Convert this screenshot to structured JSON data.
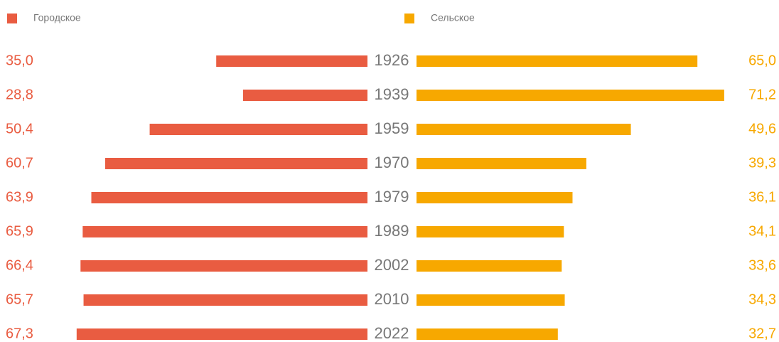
{
  "chart_data": {
    "type": "butterfly",
    "categories": [
      "1926",
      "1939",
      "1959",
      "1970",
      "1979",
      "1989",
      "2002",
      "2010",
      "2022"
    ],
    "series": [
      {
        "name": "Городское",
        "color": "#e95c41",
        "values": [
          35.0,
          28.8,
          50.4,
          60.7,
          63.9,
          65.9,
          66.4,
          65.7,
          67.3
        ],
        "value_labels": [
          "35,0",
          "28,8",
          "50,4",
          "60,7",
          "63,9",
          "65,9",
          "66,4",
          "65,7",
          "67,3"
        ]
      },
      {
        "name": "Сельское",
        "color": "#f7a800",
        "values": [
          65.0,
          71.2,
          49.6,
          39.3,
          36.1,
          34.1,
          33.6,
          34.3,
          32.7
        ],
        "value_labels": [
          "65,0",
          "71,2",
          "49,6",
          "39,3",
          "36,1",
          "34,1",
          "33,6",
          "34,3",
          "32,7"
        ]
      }
    ]
  }
}
